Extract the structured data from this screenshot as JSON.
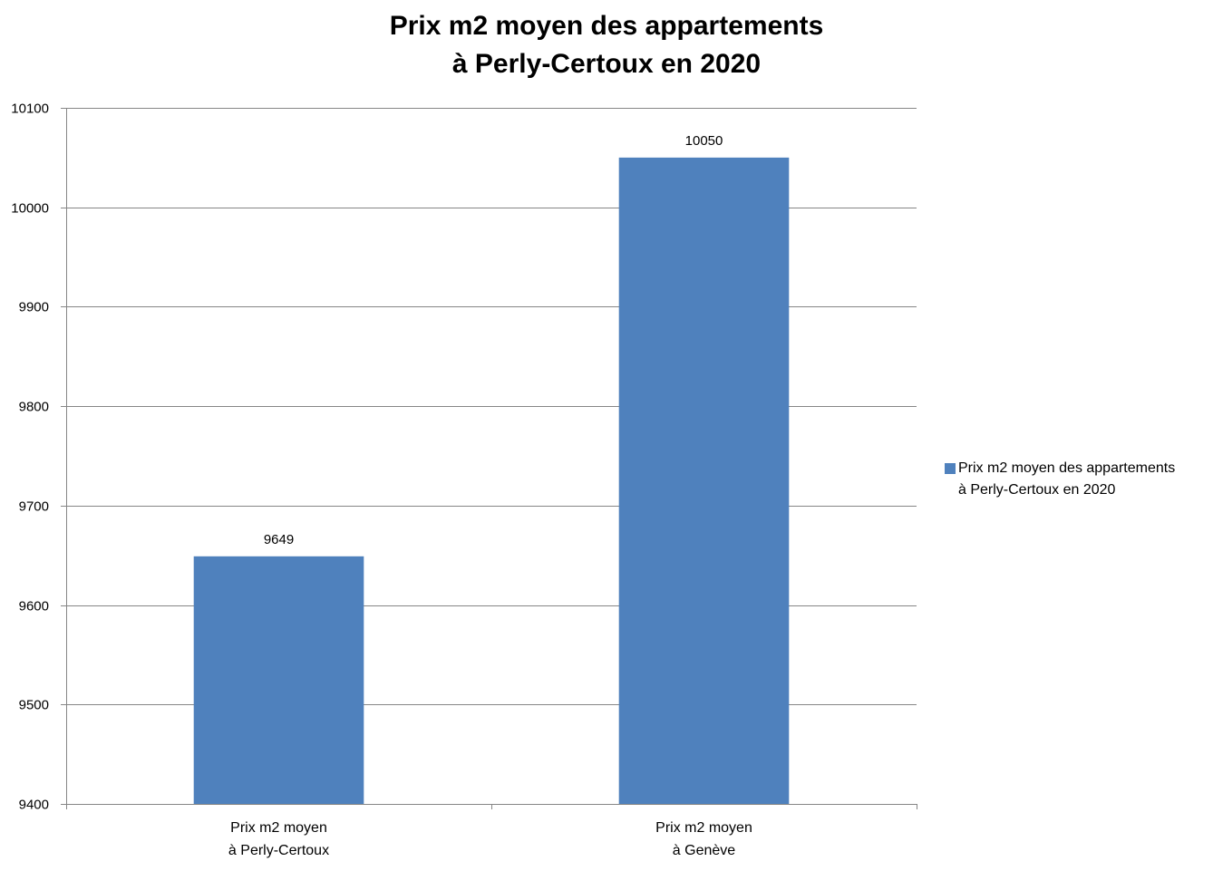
{
  "chart_data": {
    "type": "bar",
    "title_lines": [
      "Prix m2 moyen des appartements",
      "à Perly-Certoux en 2020"
    ],
    "categories": [
      [
        "Prix m2 moyen",
        "à Perly-Certoux"
      ],
      [
        "Prix m2 moyen",
        "à Genève"
      ]
    ],
    "series": [
      {
        "name_lines": [
          "Prix m2 moyen des appartements",
          "à Perly-Certoux en 2020"
        ],
        "values": [
          9649,
          10050
        ],
        "color": "#4f81bd"
      }
    ],
    "ylim": [
      9400,
      10100
    ],
    "yticks": [
      9400,
      9500,
      9600,
      9700,
      9800,
      9900,
      10000,
      10100
    ],
    "grid": true,
    "legend_position": "right"
  }
}
